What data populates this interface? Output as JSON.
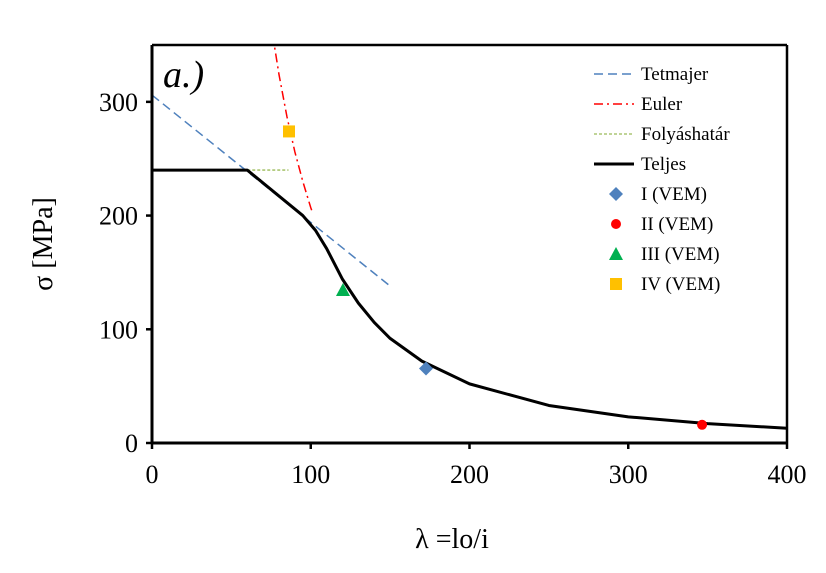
{
  "chart_data": {
    "type": "line",
    "panel_label": "a.)",
    "xlabel": "λ =lo/i",
    "ylabel": "σ [MPa]",
    "xlim": [
      0,
      400
    ],
    "ylim": [
      0,
      350
    ],
    "xticks": [
      0,
      100,
      200,
      300,
      400
    ],
    "yticks": [
      0,
      100,
      200,
      300
    ],
    "grid": false,
    "legend_position": "top-right",
    "series": [
      {
        "name": "Tetmajer",
        "style": "dashed",
        "color": "#4f81bd",
        "points": [
          [
            0,
            306
          ],
          [
            150,
            138
          ]
        ]
      },
      {
        "name": "Euler",
        "style": "dash-dot",
        "color": "#ff0000",
        "points": [
          [
            76,
            359
          ],
          [
            80,
            324
          ],
          [
            85,
            287
          ],
          [
            90,
            256
          ],
          [
            95,
            230
          ],
          [
            100,
            207
          ],
          [
            101,
            203
          ]
        ]
      },
      {
        "name": "Folyáshatár",
        "style": "dotted",
        "color": "#9bbb59",
        "points": [
          [
            60,
            240
          ],
          [
            86,
            240
          ]
        ]
      },
      {
        "name": "Teljes",
        "style": "solid",
        "color": "#000000",
        "points": [
          [
            0,
            240
          ],
          [
            60,
            240
          ],
          [
            95,
            200
          ],
          [
            103,
            187
          ],
          [
            110,
            171
          ],
          [
            120,
            144
          ],
          [
            130,
            123
          ],
          [
            140,
            106
          ],
          [
            150,
            92
          ],
          [
            170,
            72
          ],
          [
            200,
            52
          ],
          [
            250,
            33
          ],
          [
            300,
            23
          ],
          [
            350,
            17
          ],
          [
            400,
            13
          ]
        ]
      },
      {
        "name": "I  (VEM)",
        "marker": "diamond",
        "color": "#4f81bd",
        "points": [
          [
            172.6,
            65.5
          ]
        ]
      },
      {
        "name": "II  (VEM)",
        "marker": "circle",
        "color": "#ff0000",
        "points": [
          [
            346.5,
            16
          ]
        ]
      },
      {
        "name": "III  (VEM)",
        "marker": "triangle",
        "color": "#00b050",
        "points": [
          [
            120.3,
            134.5
          ]
        ]
      },
      {
        "name": "IV  (VEM)",
        "marker": "square",
        "color": "#ffc000",
        "points": [
          [
            86.3,
            274
          ]
        ]
      }
    ]
  }
}
